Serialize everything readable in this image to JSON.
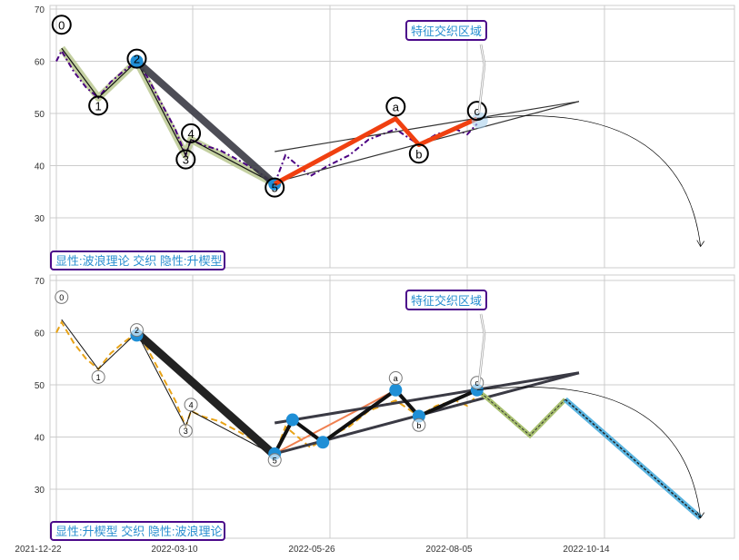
{
  "chart_data": [
    {
      "type": "line",
      "panel": "top",
      "ylim": [
        20,
        71
      ],
      "yticks": [
        30,
        40,
        50,
        60,
        70
      ],
      "grid": true,
      "legend_box": "显性:波浪理论 交织 隐性:升楔型",
      "annotation": "特征交织区域",
      "price_color": "#4b0082",
      "price": [
        [
          "2021-12-22",
          60
        ],
        [
          "2021-12-25",
          62
        ],
        [
          "2022-01-01",
          58
        ],
        [
          "2022-01-08",
          55
        ],
        [
          "2022-01-15",
          53
        ],
        [
          "2022-01-22",
          56
        ],
        [
          "2022-01-29",
          58
        ],
        [
          "2022-02-06",
          60
        ],
        [
          "2022-02-12",
          57
        ],
        [
          "2022-02-20",
          52
        ],
        [
          "2022-02-28",
          47
        ],
        [
          "2022-03-06",
          42
        ],
        [
          "2022-03-09",
          45
        ],
        [
          "2022-03-15",
          44
        ],
        [
          "2022-03-25",
          43
        ],
        [
          "2022-04-05",
          41
        ],
        [
          "2022-04-15",
          39
        ],
        [
          "2022-04-25",
          36.5
        ],
        [
          "2022-05-01",
          42
        ],
        [
          "2022-05-08",
          40
        ],
        [
          "2022-05-15",
          38
        ],
        [
          "2022-05-25",
          40
        ],
        [
          "2022-06-05",
          42
        ],
        [
          "2022-06-15",
          45
        ],
        [
          "2022-06-29",
          47
        ],
        [
          "2022-07-11",
          44
        ],
        [
          "2022-07-20",
          46
        ],
        [
          "2022-07-30",
          47
        ],
        [
          "2022-08-05",
          46
        ],
        [
          "2022-08-10",
          48
        ]
      ],
      "wave_labels": [
        {
          "label": "0",
          "date": "2021-12-25",
          "y": 62.5,
          "ly": 67
        },
        {
          "label": "1",
          "date": "2022-01-15",
          "y": 53,
          "ly": 51.5
        },
        {
          "label": "2",
          "date": "2022-02-06",
          "y": 60,
          "ly": 60.5
        },
        {
          "label": "3",
          "date": "2022-03-06",
          "y": 42,
          "ly": 41.2
        },
        {
          "label": "4",
          "date": "2022-03-09",
          "y": 45,
          "ly": 46.2
        },
        {
          "label": "5",
          "date": "2022-04-25",
          "y": 36.5,
          "ly": 35.8
        },
        {
          "label": "a",
          "date": "2022-06-29",
          "y": 49,
          "ly": 51.3
        },
        {
          "label": "b",
          "date": "2022-07-11",
          "y": 44,
          "ly": 42.3
        },
        {
          "label": "c",
          "date": "2022-08-10",
          "y": 49,
          "ly": 50.5
        }
      ],
      "corrective": [
        [
          "2022-04-25",
          36.5
        ],
        [
          "2022-06-29",
          49
        ],
        [
          "2022-07-11",
          44
        ],
        [
          "2022-08-10",
          49
        ]
      ],
      "trend_upper": [
        [
          "2022-04-25",
          42.7
        ],
        [
          "2022-10-01",
          52.3
        ]
      ],
      "trend_lower": [
        [
          "2022-04-25",
          36.8
        ],
        [
          "2022-10-01",
          52.3
        ]
      ],
      "arrow_end": [
        "2022-12-02",
        24.5
      ]
    },
    {
      "type": "line",
      "panel": "bottom",
      "ylim": [
        20,
        71
      ],
      "yticks": [
        30,
        40,
        50,
        60,
        70
      ],
      "xticks": [
        "2021-12-22",
        "2022-03-10",
        "2022-05-26",
        "2022-08-05",
        "2022-10-14"
      ],
      "grid": true,
      "legend_box": "显性:升楔型 交织 隐性:波浪理论",
      "annotation": "特征交织区域",
      "price_color": "#e8a317",
      "wave_labels": [
        {
          "label": "0",
          "date": "2021-12-25",
          "y": 62.5,
          "ly": 66.8
        },
        {
          "label": "1",
          "date": "2022-01-15",
          "y": 53,
          "ly": 51.5
        },
        {
          "label": "2",
          "date": "2022-02-06",
          "y": 60,
          "ly": 60.5
        },
        {
          "label": "3",
          "date": "2022-03-06",
          "y": 42,
          "ly": 41.2
        },
        {
          "label": "4",
          "date": "2022-03-09",
          "y": 45,
          "ly": 46.2
        },
        {
          "label": "5",
          "date": "2022-04-25",
          "y": 36.5,
          "ly": 35.6
        },
        {
          "label": "a",
          "date": "2022-06-29",
          "y": 49,
          "ly": 51.3
        },
        {
          "label": "b",
          "date": "2022-07-11",
          "y": 44,
          "ly": 42.3
        },
        {
          "label": "c",
          "date": "2022-08-10",
          "y": 49,
          "ly": 50.4
        }
      ],
      "wedge_points": [
        [
          "2022-02-06",
          59.5
        ],
        [
          "2022-04-25",
          36.8
        ],
        [
          "2022-05-05",
          43.3
        ],
        [
          "2022-05-22",
          39
        ],
        [
          "2022-06-29",
          49
        ],
        [
          "2022-07-11",
          44
        ],
        [
          "2022-08-10",
          49
        ]
      ],
      "trend_upper": [
        [
          "2022-04-25",
          42.7
        ],
        [
          "2022-10-01",
          52.3
        ]
      ],
      "trend_lower": [
        [
          "2022-04-25",
          36.8
        ],
        [
          "2022-10-01",
          52.3
        ]
      ],
      "projection_up": [
        [
          "2022-08-10",
          49
        ],
        [
          "2022-08-15",
          47.5
        ],
        [
          "2022-09-06",
          40.3
        ],
        [
          "2022-09-24",
          47.2
        ]
      ],
      "projection_down": [
        [
          "2022-09-24",
          47.2
        ],
        [
          "2022-12-02",
          24.5
        ]
      ],
      "arrow_end": [
        "2022-12-02",
        24.5
      ]
    }
  ]
}
